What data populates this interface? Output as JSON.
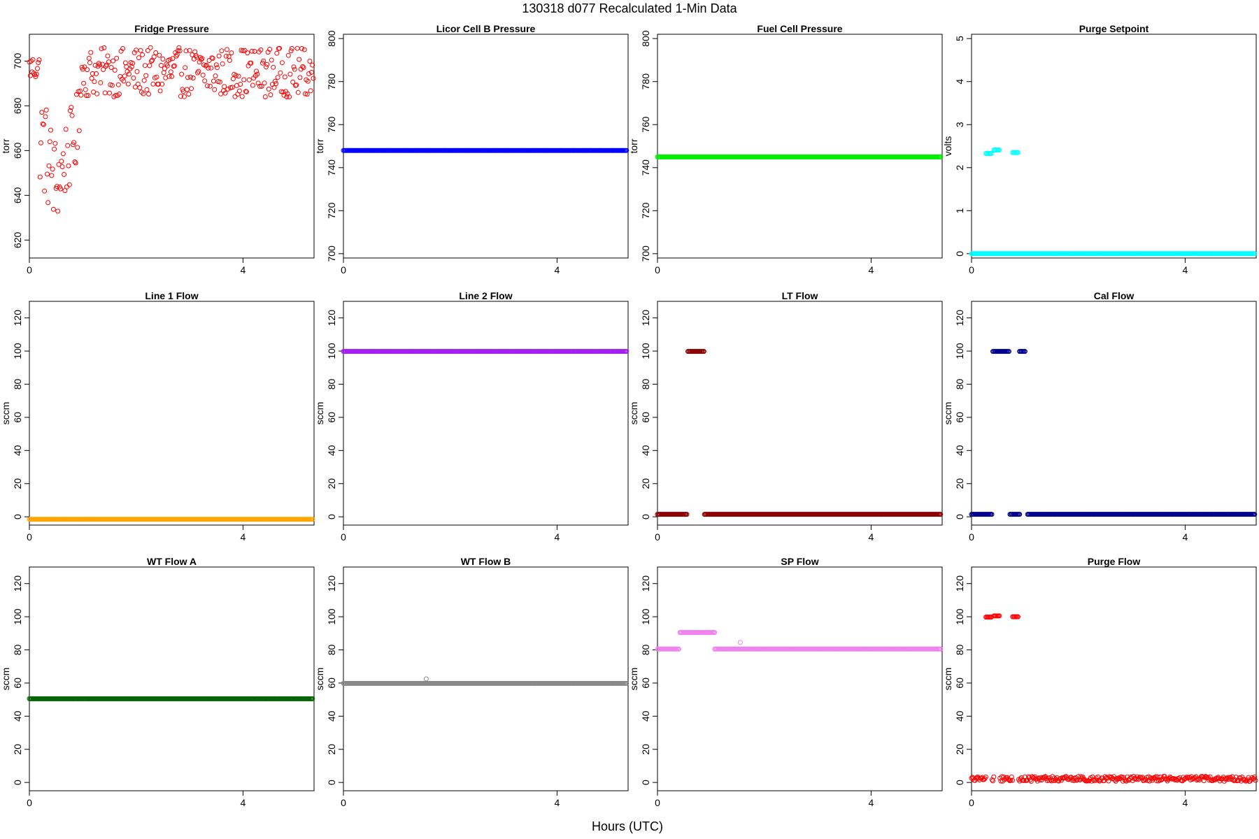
{
  "figure": {
    "title": "130318   d077   Recalculated 1-Min Data",
    "xlabel": "Hours (UTC)"
  },
  "chart_data": [
    {
      "type": "scatter",
      "title": "Fridge Pressure",
      "ylabel": "torr",
      "color": "#ff0000",
      "xlim": [
        0,
        5.33
      ],
      "ylim": [
        612,
        712
      ],
      "xticks": [
        0,
        4
      ],
      "yticks": [
        620,
        640,
        660,
        680,
        700
      ],
      "gen": "fridge",
      "points": []
    },
    {
      "type": "scatter",
      "title": "Licor Cell B Pressure",
      "ylabel": "torr",
      "color": "#0000ff",
      "xlim": [
        0,
        5.33
      ],
      "ylim": [
        698,
        802
      ],
      "xticks": [
        0,
        4
      ],
      "yticks": [
        700,
        720,
        740,
        760,
        780,
        800
      ],
      "segments": [
        {
          "x0": 0.0,
          "x1": 5.3,
          "y": 748
        }
      ],
      "points": []
    },
    {
      "type": "scatter",
      "title": "Fuel Cell Pressure",
      "ylabel": "torr",
      "color": "#00ee00",
      "xlim": [
        0,
        5.33
      ],
      "ylim": [
        698,
        802
      ],
      "xticks": [
        0,
        4
      ],
      "yticks": [
        700,
        720,
        740,
        760,
        780,
        800
      ],
      "segments": [
        {
          "x0": 0.0,
          "x1": 5.3,
          "y": 745
        }
      ],
      "points": []
    },
    {
      "type": "scatter",
      "title": "Purge Setpoint",
      "ylabel": "volts",
      "color": "#00ffff",
      "xlim": [
        0,
        5.33
      ],
      "ylim": [
        -0.1,
        5.1
      ],
      "xticks": [
        0,
        4
      ],
      "yticks": [
        0,
        1,
        2,
        3,
        4,
        5
      ],
      "segments": [
        {
          "x0": 0.0,
          "x1": 5.3,
          "y": 0.0
        },
        {
          "x0": 0.27,
          "x1": 0.37,
          "y": 2.33
        },
        {
          "x0": 0.42,
          "x1": 0.52,
          "y": 2.41
        },
        {
          "x0": 0.77,
          "x1": 0.87,
          "y": 2.35
        }
      ],
      "points": []
    },
    {
      "type": "scatter",
      "title": "Line 1 Flow",
      "ylabel": "sccm",
      "color": "#ffa500",
      "xlim": [
        0,
        5.33
      ],
      "ylim": [
        -5,
        130
      ],
      "xticks": [
        0,
        4
      ],
      "yticks": [
        0,
        20,
        40,
        60,
        80,
        100,
        120
      ],
      "segments": [
        {
          "x0": 0.0,
          "x1": 5.3,
          "y": -1.5
        }
      ],
      "points": []
    },
    {
      "type": "scatter",
      "title": "Line 2 Flow",
      "ylabel": "sccm",
      "color": "#a020f0",
      "xlim": [
        0,
        5.33
      ],
      "ylim": [
        -5,
        130
      ],
      "xticks": [
        0,
        4
      ],
      "yticks": [
        0,
        20,
        40,
        60,
        80,
        100,
        120
      ],
      "segments": [
        {
          "x0": 0.0,
          "x1": 5.3,
          "y": 99.8
        }
      ],
      "points": []
    },
    {
      "type": "scatter",
      "title": "LT Flow",
      "ylabel": "sccm",
      "color": "#8b0000",
      "xlim": [
        0,
        5.33
      ],
      "ylim": [
        -5,
        130
      ],
      "xticks": [
        0,
        4
      ],
      "yticks": [
        0,
        20,
        40,
        60,
        80,
        100,
        120
      ],
      "segments": [
        {
          "x0": 0.0,
          "x1": 0.55,
          "y": 1.5
        },
        {
          "x0": 0.88,
          "x1": 5.3,
          "y": 1.5
        },
        {
          "x0": 0.57,
          "x1": 0.87,
          "y": 99.8
        }
      ],
      "points": []
    },
    {
      "type": "scatter",
      "title": "Cal Flow",
      "ylabel": "sccm",
      "color": "#00008b",
      "xlim": [
        0,
        5.33
      ],
      "ylim": [
        -5,
        130
      ],
      "xticks": [
        0,
        4
      ],
      "yticks": [
        0,
        20,
        40,
        60,
        80,
        100,
        120
      ],
      "segments": [
        {
          "x0": 0.0,
          "x1": 0.38,
          "y": 1.5
        },
        {
          "x0": 0.72,
          "x1": 0.9,
          "y": 1.5
        },
        {
          "x0": 1.05,
          "x1": 5.3,
          "y": 1.5
        },
        {
          "x0": 0.4,
          "x1": 0.7,
          "y": 99.8
        },
        {
          "x0": 0.9,
          "x1": 1.0,
          "y": 99.8
        }
      ],
      "points": []
    },
    {
      "type": "scatter",
      "title": "WT Flow A",
      "ylabel": "sccm",
      "color": "#006400",
      "xlim": [
        0,
        5.33
      ],
      "ylim": [
        -5,
        130
      ],
      "xticks": [
        0,
        4
      ],
      "yticks": [
        0,
        20,
        40,
        60,
        80,
        100,
        120
      ],
      "segments": [
        {
          "x0": 0.0,
          "x1": 5.3,
          "y": 50.5
        }
      ],
      "points": []
    },
    {
      "type": "scatter",
      "title": "WT Flow B",
      "ylabel": "sccm",
      "color": "#888888",
      "xlim": [
        0,
        5.33
      ],
      "ylim": [
        -5,
        130
      ],
      "xticks": [
        0,
        4
      ],
      "yticks": [
        0,
        20,
        40,
        60,
        80,
        100,
        120
      ],
      "segments": [
        {
          "x0": 0.0,
          "x1": 5.3,
          "y": 59.8
        }
      ],
      "points": [
        [
          1.55,
          62.5
        ]
      ]
    },
    {
      "type": "scatter",
      "title": "SP Flow",
      "ylabel": "sccm",
      "color": "#ee82ee",
      "xlim": [
        0,
        5.33
      ],
      "ylim": [
        -5,
        130
      ],
      "xticks": [
        0,
        4
      ],
      "yticks": [
        0,
        20,
        40,
        60,
        80,
        100,
        120
      ],
      "segments": [
        {
          "x0": 0.0,
          "x1": 0.4,
          "y": 80.5
        },
        {
          "x0": 0.42,
          "x1": 1.07,
          "y": 90.5
        },
        {
          "x0": 1.07,
          "x1": 5.3,
          "y": 80.5
        }
      ],
      "points": [
        [
          1.55,
          84.5
        ]
      ]
    },
    {
      "type": "scatter",
      "title": "Purge Flow",
      "ylabel": "sccm",
      "color": "#ff0000",
      "xlim": [
        0,
        5.33
      ],
      "ylim": [
        -5,
        130
      ],
      "xticks": [
        0,
        4
      ],
      "yticks": [
        0,
        20,
        40,
        60,
        80,
        100,
        120
      ],
      "gen": "purge",
      "segments": [
        {
          "x0": 0.27,
          "x1": 0.37,
          "y": 99.8
        },
        {
          "x0": 0.42,
          "x1": 0.52,
          "y": 100.5
        },
        {
          "x0": 0.77,
          "x1": 0.87,
          "y": 100.0
        }
      ],
      "points": []
    }
  ]
}
